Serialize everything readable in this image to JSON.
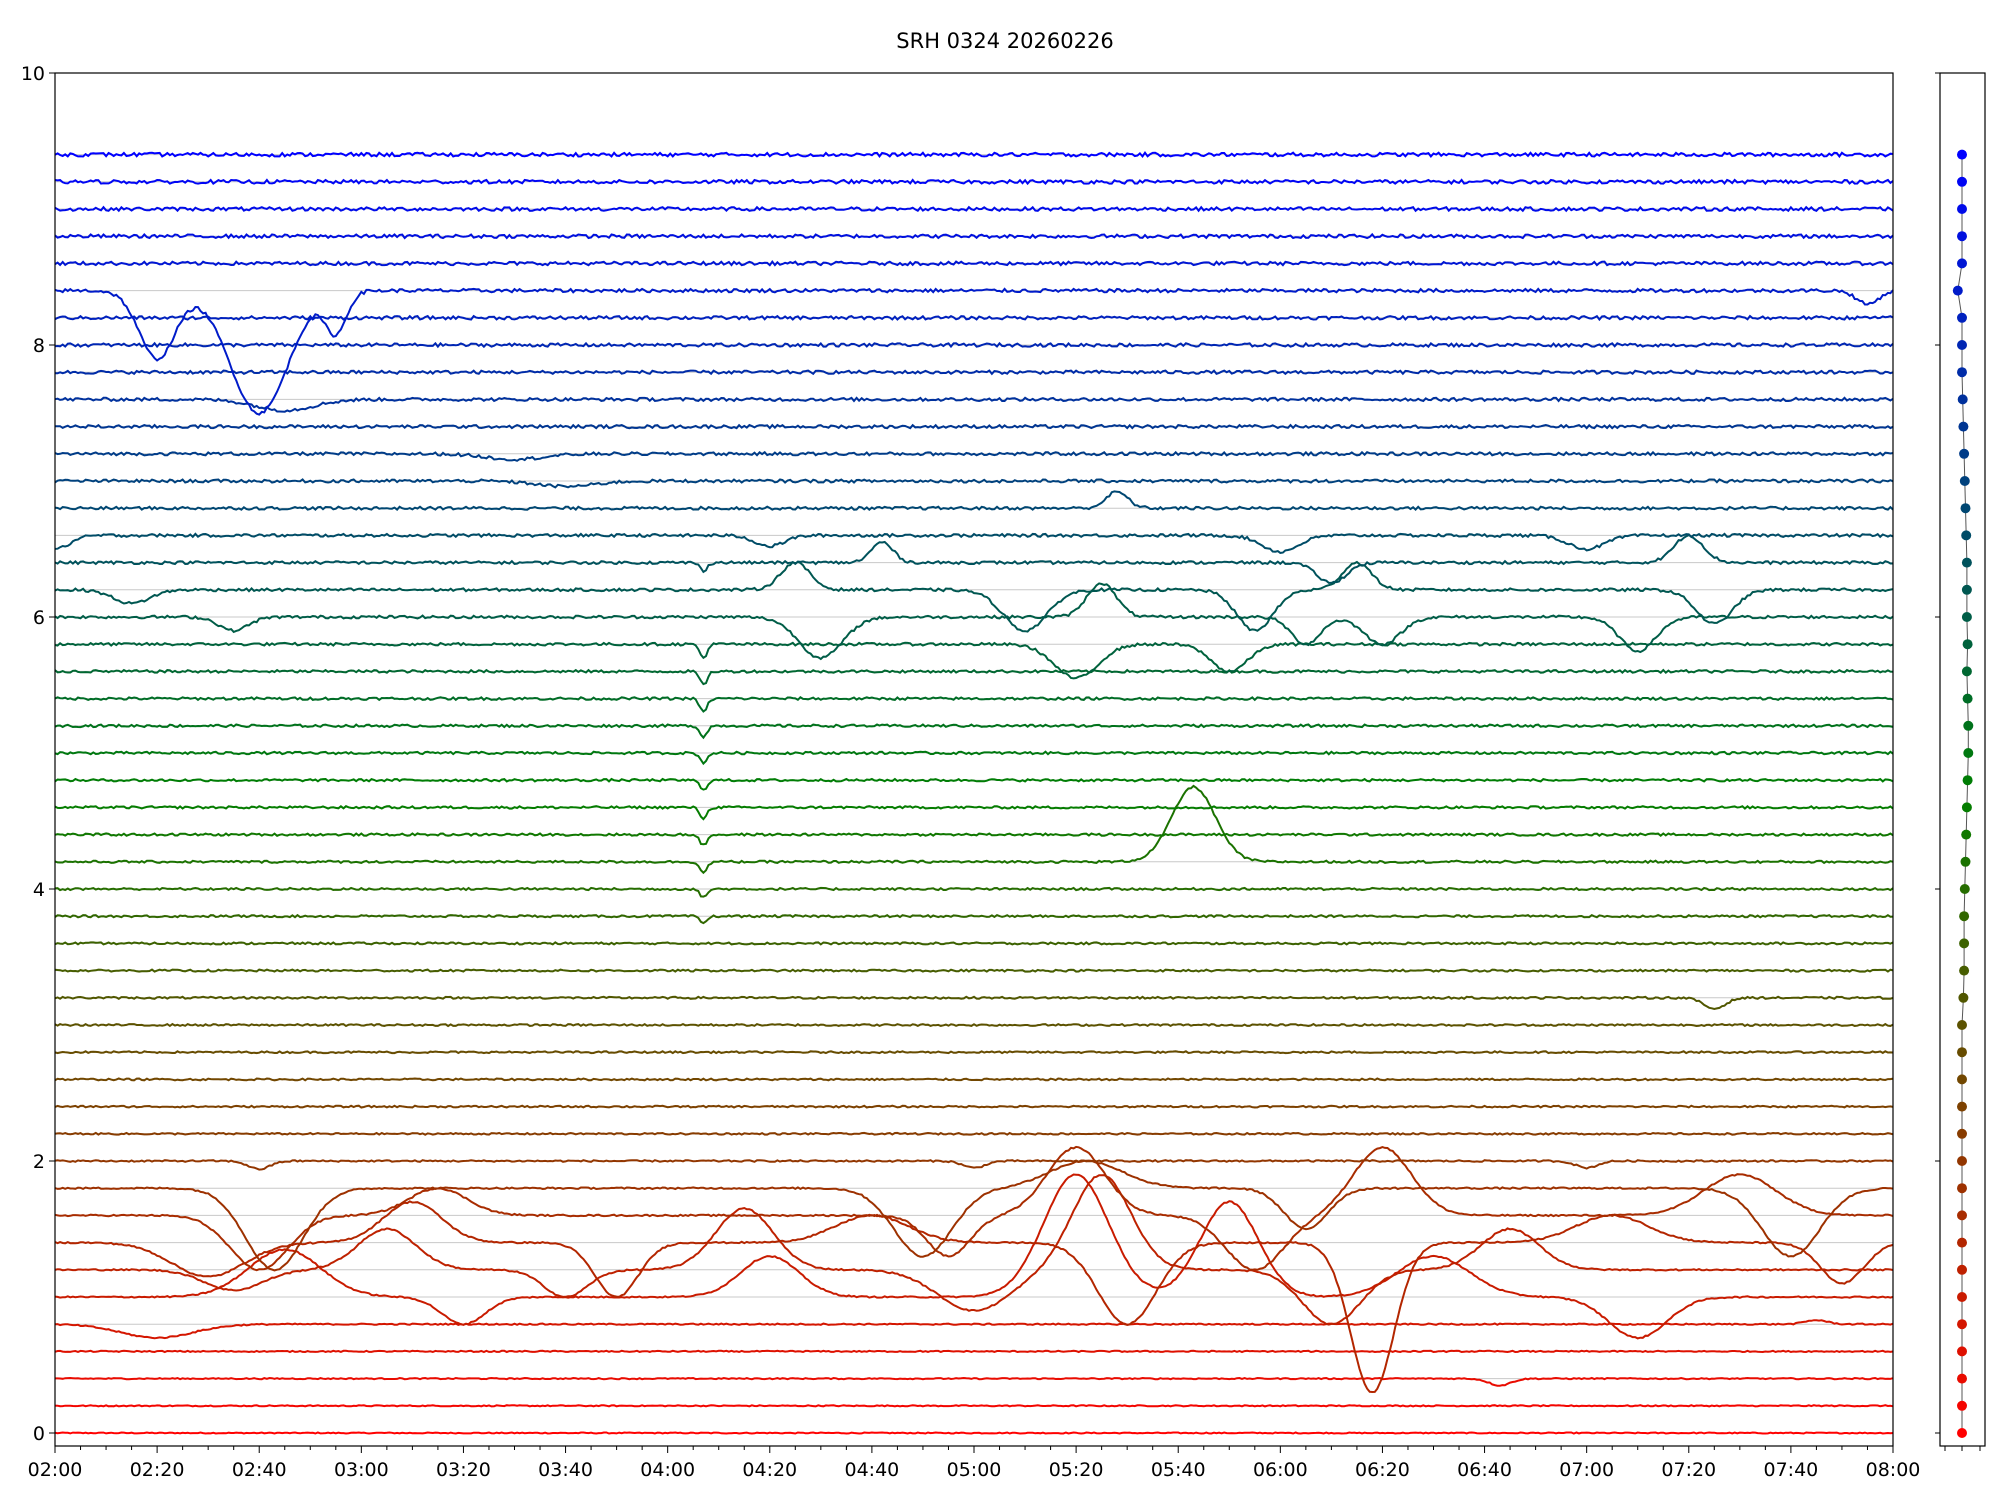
{
  "chart_data": [
    {
      "type": "line",
      "title": "SRH 0324 20260226",
      "xlabel": "",
      "ylabel": "",
      "x_range": [
        "02:00",
        "08:00"
      ],
      "xlim_minutes_of_day": [
        120,
        480
      ],
      "ylim": [
        0,
        10
      ],
      "x_ticks": [
        "02:00",
        "02:20",
        "02:40",
        "03:00",
        "03:20",
        "03:40",
        "04:00",
        "04:20",
        "04:40",
        "05:00",
        "05:20",
        "05:40",
        "06:00",
        "06:20",
        "06:40",
        "07:00",
        "07:20",
        "07:40",
        "08:00"
      ],
      "y_ticks": [
        "0",
        "2",
        "4",
        "6",
        "8",
        "10"
      ],
      "grid": "horizontal reference line at each trace baseline",
      "legend": "none",
      "series_count": 48,
      "baseline_step": 0.2,
      "first_baseline": 0.0,
      "color_start": "#ff0000",
      "color_end": "#0000ff",
      "series": [
        {
          "baseline": 0.0,
          "events": []
        },
        {
          "baseline": 0.2,
          "events": []
        },
        {
          "baseline": 0.4,
          "events": [
            {
              "t": "06:43",
              "dy": -0.05,
              "w": 3
            }
          ]
        },
        {
          "baseline": 0.6,
          "events": []
        },
        {
          "baseline": 0.8,
          "events": [
            {
              "t": "02:20",
              "dy": -0.1,
              "w": 10
            },
            {
              "t": "07:45",
              "dy": 0.03,
              "w": 3
            }
          ]
        },
        {
          "baseline": 1.0,
          "events": [
            {
              "t": "02:45",
              "dy": 0.35,
              "w": 10
            },
            {
              "t": "03:20",
              "dy": -0.2,
              "w": 6
            },
            {
              "t": "04:20",
              "dy": 0.3,
              "w": 8
            },
            {
              "t": "05:20",
              "dy": 0.9,
              "w": 9
            },
            {
              "t": "05:50",
              "dy": 0.7,
              "w": 8
            },
            {
              "t": "06:30",
              "dy": 0.3,
              "w": 10
            },
            {
              "t": "07:10",
              "dy": -0.3,
              "w": 8
            }
          ]
        },
        {
          "baseline": 1.2,
          "events": [
            {
              "t": "02:35",
              "dy": -0.15,
              "w": 8
            },
            {
              "t": "03:05",
              "dy": 0.3,
              "w": 8
            },
            {
              "t": "03:40",
              "dy": -0.2,
              "w": 6
            },
            {
              "t": "04:15",
              "dy": 0.45,
              "w": 8
            },
            {
              "t": "05:00",
              "dy": -0.3,
              "w": 10
            },
            {
              "t": "05:25",
              "dy": 0.7,
              "w": 8
            },
            {
              "t": "06:10",
              "dy": -0.4,
              "w": 8
            },
            {
              "t": "06:45",
              "dy": 0.3,
              "w": 8
            }
          ]
        },
        {
          "baseline": 1.4,
          "events": [
            {
              "t": "02:30",
              "dy": -0.25,
              "w": 10
            },
            {
              "t": "03:10",
              "dy": 0.3,
              "w": 8
            },
            {
              "t": "03:50",
              "dy": -0.4,
              "w": 6
            },
            {
              "t": "04:40",
              "dy": 0.2,
              "w": 10
            },
            {
              "t": "05:30",
              "dy": -0.6,
              "w": 8
            },
            {
              "t": "06:18",
              "dy": -1.1,
              "w": 6
            },
            {
              "t": "07:05",
              "dy": 0.2,
              "w": 10
            },
            {
              "t": "07:50",
              "dy": -0.3,
              "w": 6
            }
          ]
        },
        {
          "baseline": 1.6,
          "events": [
            {
              "t": "02:40",
              "dy": -0.4,
              "w": 8
            },
            {
              "t": "03:15",
              "dy": 0.2,
              "w": 8
            },
            {
              "t": "04:55",
              "dy": -0.3,
              "w": 6
            },
            {
              "t": "05:20",
              "dy": 0.5,
              "w": 8
            },
            {
              "t": "05:55",
              "dy": -0.4,
              "w": 8
            },
            {
              "t": "06:20",
              "dy": 0.5,
              "w": 8
            },
            {
              "t": "07:30",
              "dy": 0.3,
              "w": 10
            }
          ]
        },
        {
          "baseline": 1.8,
          "events": [
            {
              "t": "02:43",
              "dy": -0.6,
              "w": 8
            },
            {
              "t": "04:50",
              "dy": -0.5,
              "w": 8
            },
            {
              "t": "05:22",
              "dy": 0.2,
              "w": 10
            },
            {
              "t": "06:05",
              "dy": -0.3,
              "w": 6
            },
            {
              "t": "07:40",
              "dy": -0.5,
              "w": 8
            }
          ]
        },
        {
          "baseline": 2.0,
          "events": [
            {
              "t": "02:40",
              "dy": -0.06,
              "w": 3
            },
            {
              "t": "05:00",
              "dy": -0.05,
              "w": 3
            },
            {
              "t": "07:00",
              "dy": -0.05,
              "w": 3
            }
          ]
        },
        {
          "baseline": 2.2,
          "events": []
        },
        {
          "baseline": 2.4,
          "events": []
        },
        {
          "baseline": 2.6,
          "events": []
        },
        {
          "baseline": 2.8,
          "events": []
        },
        {
          "baseline": 3.0,
          "events": []
        },
        {
          "baseline": 3.2,
          "events": [
            {
              "t": "07:25",
              "dy": -0.08,
              "w": 3
            }
          ]
        },
        {
          "baseline": 3.4,
          "events": []
        },
        {
          "baseline": 3.6,
          "events": []
        },
        {
          "baseline": 3.8,
          "events": [
            {
              "t": "04:07",
              "dy": -0.05,
              "w": 1
            }
          ]
        },
        {
          "baseline": 4.0,
          "events": [
            {
              "t": "04:07",
              "dy": -0.06,
              "w": 1
            }
          ]
        },
        {
          "baseline": 4.2,
          "events": [
            {
              "t": "04:07",
              "dy": -0.08,
              "w": 1
            },
            {
              "t": "05:43",
              "dy": 0.55,
              "w": 6
            }
          ]
        },
        {
          "baseline": 4.4,
          "events": [
            {
              "t": "04:07",
              "dy": -0.08,
              "w": 1
            }
          ]
        },
        {
          "baseline": 4.6,
          "events": [
            {
              "t": "04:07",
              "dy": -0.08,
              "w": 1
            }
          ]
        },
        {
          "baseline": 4.8,
          "events": [
            {
              "t": "04:07",
              "dy": -0.07,
              "w": 1
            }
          ]
        },
        {
          "baseline": 5.0,
          "events": [
            {
              "t": "04:07",
              "dy": -0.07,
              "w": 1
            }
          ]
        },
        {
          "baseline": 5.2,
          "events": [
            {
              "t": "04:07",
              "dy": -0.08,
              "w": 1
            }
          ]
        },
        {
          "baseline": 5.4,
          "events": [
            {
              "t": "04:07",
              "dy": -0.1,
              "w": 1
            }
          ]
        },
        {
          "baseline": 5.6,
          "events": [
            {
              "t": "04:07",
              "dy": -0.1,
              "w": 1
            }
          ]
        },
        {
          "baseline": 5.8,
          "events": [
            {
              "t": "04:07",
              "dy": -0.1,
              "w": 1
            },
            {
              "t": "05:20",
              "dy": -0.25,
              "w": 6
            },
            {
              "t": "05:50",
              "dy": -0.2,
              "w": 5
            }
          ]
        },
        {
          "baseline": 6.0,
          "events": [
            {
              "t": "02:35",
              "dy": -0.1,
              "w": 4
            },
            {
              "t": "04:30",
              "dy": -0.3,
              "w": 6
            },
            {
              "t": "05:25",
              "dy": 0.25,
              "w": 4
            },
            {
              "t": "06:05",
              "dy": -0.2,
              "w": 4
            },
            {
              "t": "06:20",
              "dy": -0.2,
              "w": 5
            },
            {
              "t": "07:10",
              "dy": -0.25,
              "w": 5
            }
          ]
        },
        {
          "baseline": 6.2,
          "events": [
            {
              "t": "02:15",
              "dy": -0.1,
              "w": 5
            },
            {
              "t": "04:25",
              "dy": 0.2,
              "w": 4
            },
            {
              "t": "05:10",
              "dy": -0.3,
              "w": 6
            },
            {
              "t": "05:55",
              "dy": -0.3,
              "w": 5
            },
            {
              "t": "06:15",
              "dy": 0.2,
              "w": 4
            },
            {
              "t": "07:25",
              "dy": -0.25,
              "w": 5
            }
          ]
        },
        {
          "baseline": 6.4,
          "events": [
            {
              "t": "04:07",
              "dy": -0.06,
              "w": 1
            },
            {
              "t": "04:42",
              "dy": 0.15,
              "w": 3
            },
            {
              "t": "06:10",
              "dy": -0.15,
              "w": 4
            },
            {
              "t": "07:20",
              "dy": 0.2,
              "w": 4
            }
          ]
        },
        {
          "baseline": 6.6,
          "events": [
            {
              "t": "02:00",
              "dy": -0.1,
              "w": 4
            },
            {
              "t": "04:20",
              "dy": -0.08,
              "w": 4
            },
            {
              "t": "06:00",
              "dy": -0.12,
              "w": 5
            },
            {
              "t": "07:00",
              "dy": -0.1,
              "w": 5
            }
          ]
        },
        {
          "baseline": 6.8,
          "events": [
            {
              "t": "05:28",
              "dy": 0.12,
              "w": 3
            }
          ]
        },
        {
          "baseline": 7.0,
          "events": [
            {
              "t": "03:40",
              "dy": -0.04,
              "w": 8
            }
          ]
        },
        {
          "baseline": 7.2,
          "events": [
            {
              "t": "03:30",
              "dy": -0.04,
              "w": 8
            }
          ]
        },
        {
          "baseline": 7.4,
          "events": []
        },
        {
          "baseline": 7.6,
          "events": [
            {
              "t": "02:45",
              "dy": -0.08,
              "w": 8
            }
          ]
        },
        {
          "baseline": 7.8,
          "events": []
        },
        {
          "baseline": 8.0,
          "events": []
        },
        {
          "baseline": 8.2,
          "events": []
        },
        {
          "baseline": 8.4,
          "events": [
            {
              "t": "02:20",
              "dy": -0.5,
              "w": 5
            },
            {
              "t": "02:40",
              "dy": -0.9,
              "w": 8
            },
            {
              "t": "02:55",
              "dy": -0.3,
              "w": 3
            },
            {
              "t": "07:55",
              "dy": -0.1,
              "w": 3
            }
          ]
        },
        {
          "baseline": 8.6,
          "events": []
        },
        {
          "baseline": 8.8,
          "events": []
        },
        {
          "baseline": 9.0,
          "events": []
        },
        {
          "baseline": 9.2,
          "events": []
        },
        {
          "baseline": 9.4,
          "events": []
        }
      ]
    },
    {
      "type": "scatter",
      "title": "",
      "xlabel": "",
      "ylabel": "",
      "xlim": [
        -1,
        1
      ],
      "ylim": [
        0,
        10
      ],
      "point_count": 48,
      "x_offsets": [
        0,
        0,
        0,
        0,
        0,
        0,
        0,
        0,
        0,
        0,
        0,
        0,
        0,
        0,
        0,
        0,
        0.1,
        0.15,
        0.15,
        0.15,
        0.2,
        0.25,
        0.3,
        0.35,
        0.4,
        0.45,
        0.45,
        0.4,
        0.35,
        0.4,
        0.35,
        0.35,
        0.35,
        0.3,
        0.25,
        0.2,
        0.15,
        0.1,
        0.05,
        0,
        0,
        0,
        -0.3,
        0,
        0,
        0,
        0,
        0
      ]
    }
  ]
}
